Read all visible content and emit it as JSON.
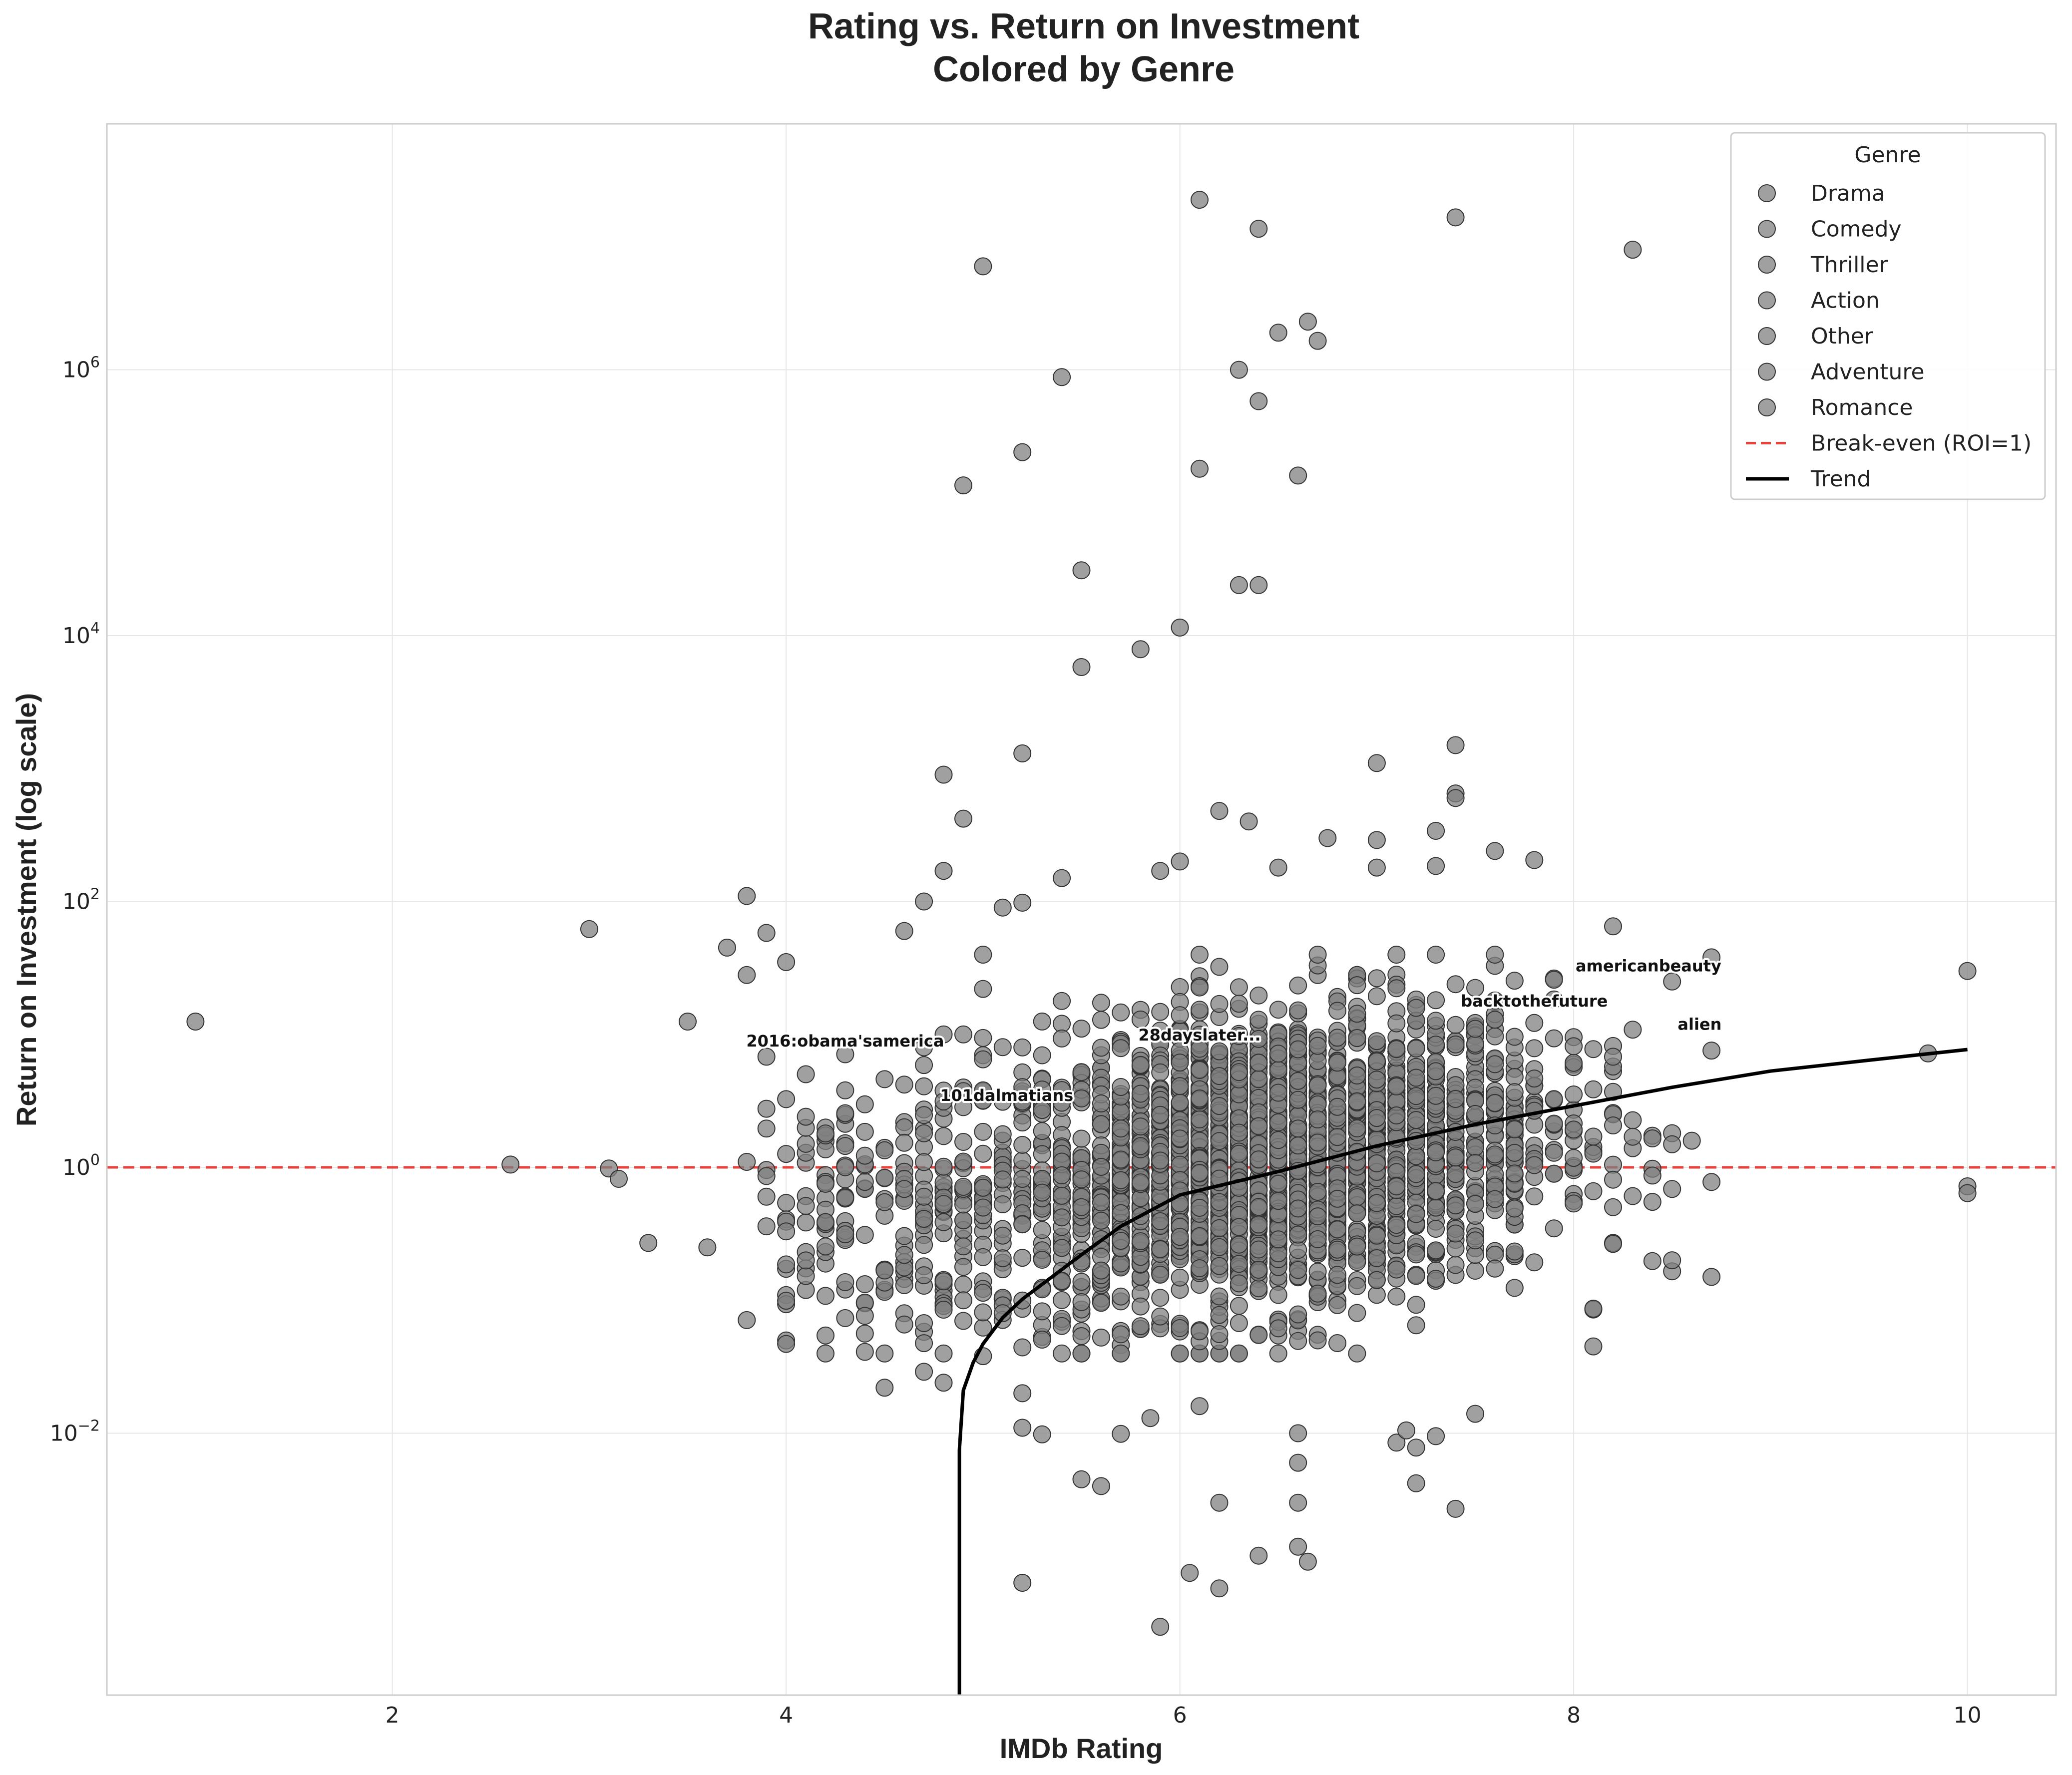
{
  "chart_data": {
    "type": "scatter",
    "title_lines": [
      "Rating vs. Return on Investment",
      "Colored by Genre"
    ],
    "xlabel": "IMDb Rating",
    "ylabel": "Return on Investment (log scale)",
    "xlim": [
      0.55,
      10.45
    ],
    "ylim_log10": [
      -3.97,
      7.85
    ],
    "y_scale": "log",
    "grid": true,
    "x_ticks": [
      {
        "value": 2,
        "label": "2"
      },
      {
        "value": 4,
        "label": "4"
      },
      {
        "value": 6,
        "label": "6"
      },
      {
        "value": 8,
        "label": "8"
      },
      {
        "value": 10,
        "label": "10"
      }
    ],
    "y_ticks": [
      {
        "value": 0.01,
        "base": "10",
        "exp": "−2"
      },
      {
        "value": 1,
        "base": "10",
        "exp": "0"
      },
      {
        "value": 100,
        "base": "10",
        "exp": "2"
      },
      {
        "value": 10000,
        "base": "10",
        "exp": "4"
      },
      {
        "value": 1000000,
        "base": "10",
        "exp": "6"
      }
    ],
    "legend": {
      "title": "Genre",
      "position": "top-right",
      "items": [
        {
          "label": "Drama",
          "kind": "marker"
        },
        {
          "label": "Comedy",
          "kind": "marker"
        },
        {
          "label": "Thriller",
          "kind": "marker"
        },
        {
          "label": "Action",
          "kind": "marker"
        },
        {
          "label": "Other",
          "kind": "marker"
        },
        {
          "label": "Adventure",
          "kind": "marker"
        },
        {
          "label": "Romance",
          "kind": "marker"
        },
        {
          "label": "Break-even (ROI=1)",
          "kind": "dashed"
        },
        {
          "label": "Trend",
          "kind": "line"
        }
      ]
    },
    "colors": {
      "marker_fill": "#808080",
      "marker_edge": "#333333",
      "break_even": "#e8413c",
      "trend": "#000000",
      "grid": "#e6e6e6"
    },
    "break_even": {
      "y": 1,
      "label": "Break-even (ROI=1)"
    },
    "trend": {
      "label": "Trend",
      "x": [
        4.88,
        4.88,
        4.9,
        4.95,
        5.0,
        5.1,
        5.2,
        5.35,
        5.5,
        5.7,
        6.0,
        6.5,
        7.0,
        7.5,
        8.0,
        8.5,
        9.0,
        9.5,
        10.0
      ],
      "y": [
        0.0001,
        0.0075,
        0.021,
        0.034,
        0.047,
        0.074,
        0.102,
        0.15,
        0.22,
        0.36,
        0.62,
        0.93,
        1.45,
        2.1,
        2.9,
        4.0,
        5.3,
        6.4,
        7.7
      ]
    },
    "annotations": [
      {
        "label": "2016:obama'samerica",
        "x": 4.3,
        "y": 9
      },
      {
        "label": "101dalmatians",
        "x": 5.12,
        "y": 3.5
      },
      {
        "label": "28dayslater...",
        "x": 6.1,
        "y": 10
      },
      {
        "label": "backtothefuture",
        "x": 7.8,
        "y": 18
      },
      {
        "label": "americanbeauty",
        "x": 8.38,
        "y": 33
      },
      {
        "label": "alien",
        "x": 8.64,
        "y": 12
      }
    ],
    "outliers": [
      {
        "x": 1.0,
        "y": 12.5
      },
      {
        "x": 2.6,
        "y": 1.05
      },
      {
        "x": 3.0,
        "y": 62
      },
      {
        "x": 3.1,
        "y": 0.98
      },
      {
        "x": 3.15,
        "y": 0.82
      },
      {
        "x": 3.3,
        "y": 0.27
      },
      {
        "x": 3.5,
        "y": 12.5
      },
      {
        "x": 3.6,
        "y": 0.25
      },
      {
        "x": 3.7,
        "y": 45
      },
      {
        "x": 3.8,
        "y": 110
      },
      {
        "x": 3.8,
        "y": 28
      },
      {
        "x": 3.8,
        "y": 1.1
      },
      {
        "x": 3.8,
        "y": 0.071
      },
      {
        "x": 3.9,
        "y": 58
      },
      {
        "x": 3.9,
        "y": 6.8
      },
      {
        "x": 3.9,
        "y": 0.36
      },
      {
        "x": 4.0,
        "y": 35
      },
      {
        "x": 4.0,
        "y": 0.047
      },
      {
        "x": 4.0,
        "y": 0.33
      },
      {
        "x": 4.5,
        "y": 0.022
      },
      {
        "x": 4.6,
        "y": 0.13
      },
      {
        "x": 4.7,
        "y": 0.029
      },
      {
        "x": 4.8,
        "y": 0.024
      },
      {
        "x": 4.8,
        "y": 0.085
      },
      {
        "x": 4.9,
        "y": 0.1
      },
      {
        "x": 5.0,
        "y": 0.038
      },
      {
        "x": 4.8,
        "y": 170
      },
      {
        "x": 4.7,
        "y": 100
      },
      {
        "x": 4.6,
        "y": 60
      },
      {
        "x": 4.9,
        "y": 420
      },
      {
        "x": 4.8,
        "y": 900
      },
      {
        "x": 5.1,
        "y": 0.08
      },
      {
        "x": 5.2,
        "y": 0.011
      },
      {
        "x": 5.2,
        "y": 0.02
      },
      {
        "x": 5.2,
        "y": 0.00075
      },
      {
        "x": 5.3,
        "y": 0.0098
      },
      {
        "x": 5.5,
        "y": 0.0045
      },
      {
        "x": 5.6,
        "y": 0.004
      },
      {
        "x": 5.7,
        "y": 0.0099
      },
      {
        "x": 5.85,
        "y": 0.013
      },
      {
        "x": 5.9,
        "y": 0.00035
      },
      {
        "x": 6.05,
        "y": 0.00089
      },
      {
        "x": 6.1,
        "y": 0.016
      },
      {
        "x": 6.2,
        "y": 0.003
      },
      {
        "x": 6.2,
        "y": 0.00068
      },
      {
        "x": 6.4,
        "y": 0.0012
      },
      {
        "x": 6.6,
        "y": 0.003
      },
      {
        "x": 6.6,
        "y": 0.0014
      },
      {
        "x": 6.65,
        "y": 0.00108
      },
      {
        "x": 6.6,
        "y": 0.01
      },
      {
        "x": 6.6,
        "y": 0.006
      },
      {
        "x": 7.1,
        "y": 0.0085
      },
      {
        "x": 7.15,
        "y": 0.0105
      },
      {
        "x": 7.2,
        "y": 0.0042
      },
      {
        "x": 7.2,
        "y": 0.0078
      },
      {
        "x": 7.3,
        "y": 0.0095
      },
      {
        "x": 7.4,
        "y": 0.0027
      },
      {
        "x": 7.5,
        "y": 0.014
      },
      {
        "x": 8.1,
        "y": 0.045
      },
      {
        "x": 8.5,
        "y": 0.2
      },
      {
        "x": 8.7,
        "y": 0.15
      },
      {
        "x": 8.4,
        "y": 0.55
      },
      {
        "x": 8.7,
        "y": 38
      },
      {
        "x": 8.5,
        "y": 25
      },
      {
        "x": 8.2,
        "y": 65
      },
      {
        "x": 9.8,
        "y": 7.2
      },
      {
        "x": 10.0,
        "y": 30
      },
      {
        "x": 10.0,
        "y": 0.72
      },
      {
        "x": 10.0,
        "y": 0.64
      },
      {
        "x": 5.0,
        "y": 6000000
      },
      {
        "x": 6.1,
        "y": 19000000
      },
      {
        "x": 6.4,
        "y": 11500000
      },
      {
        "x": 7.4,
        "y": 14000000
      },
      {
        "x": 8.3,
        "y": 8000000
      },
      {
        "x": 6.65,
        "y": 2300000
      },
      {
        "x": 6.5,
        "y": 1900000
      },
      {
        "x": 6.7,
        "y": 1650000
      },
      {
        "x": 6.3,
        "y": 1000000
      },
      {
        "x": 5.4,
        "y": 880000
      },
      {
        "x": 6.4,
        "y": 580000
      },
      {
        "x": 5.2,
        "y": 240000
      },
      {
        "x": 6.1,
        "y": 180000
      },
      {
        "x": 6.6,
        "y": 160000
      },
      {
        "x": 4.9,
        "y": 135000
      },
      {
        "x": 5.5,
        "y": 31000
      },
      {
        "x": 6.3,
        "y": 24000
      },
      {
        "x": 6.4,
        "y": 24000
      },
      {
        "x": 6.0,
        "y": 11500
      },
      {
        "x": 5.8,
        "y": 7900
      },
      {
        "x": 5.5,
        "y": 5800
      },
      {
        "x": 5.2,
        "y": 1300
      },
      {
        "x": 7.0,
        "y": 1100
      },
      {
        "x": 7.4,
        "y": 1500
      },
      {
        "x": 7.4,
        "y": 650
      },
      {
        "x": 7.4,
        "y": 600
      },
      {
        "x": 6.2,
        "y": 480
      },
      {
        "x": 6.35,
        "y": 400
      },
      {
        "x": 7.3,
        "y": 340
      },
      {
        "x": 6.75,
        "y": 300
      },
      {
        "x": 7.0,
        "y": 290
      },
      {
        "x": 7.6,
        "y": 240
      },
      {
        "x": 7.8,
        "y": 205
      },
      {
        "x": 6.0,
        "y": 200
      },
      {
        "x": 7.3,
        "y": 185
      },
      {
        "x": 6.5,
        "y": 180
      },
      {
        "x": 7.0,
        "y": 180
      },
      {
        "x": 5.9,
        "y": 170
      },
      {
        "x": 5.4,
        "y": 150
      },
      {
        "x": 5.2,
        "y": 98
      },
      {
        "x": 5.1,
        "y": 90
      },
      {
        "x": 5.0,
        "y": 22
      },
      {
        "x": 5.0,
        "y": 6.5
      },
      {
        "x": 4.8,
        "y": 10
      },
      {
        "x": 4.9,
        "y": 10
      },
      {
        "x": 4.7,
        "y": 8
      }
    ]
  }
}
